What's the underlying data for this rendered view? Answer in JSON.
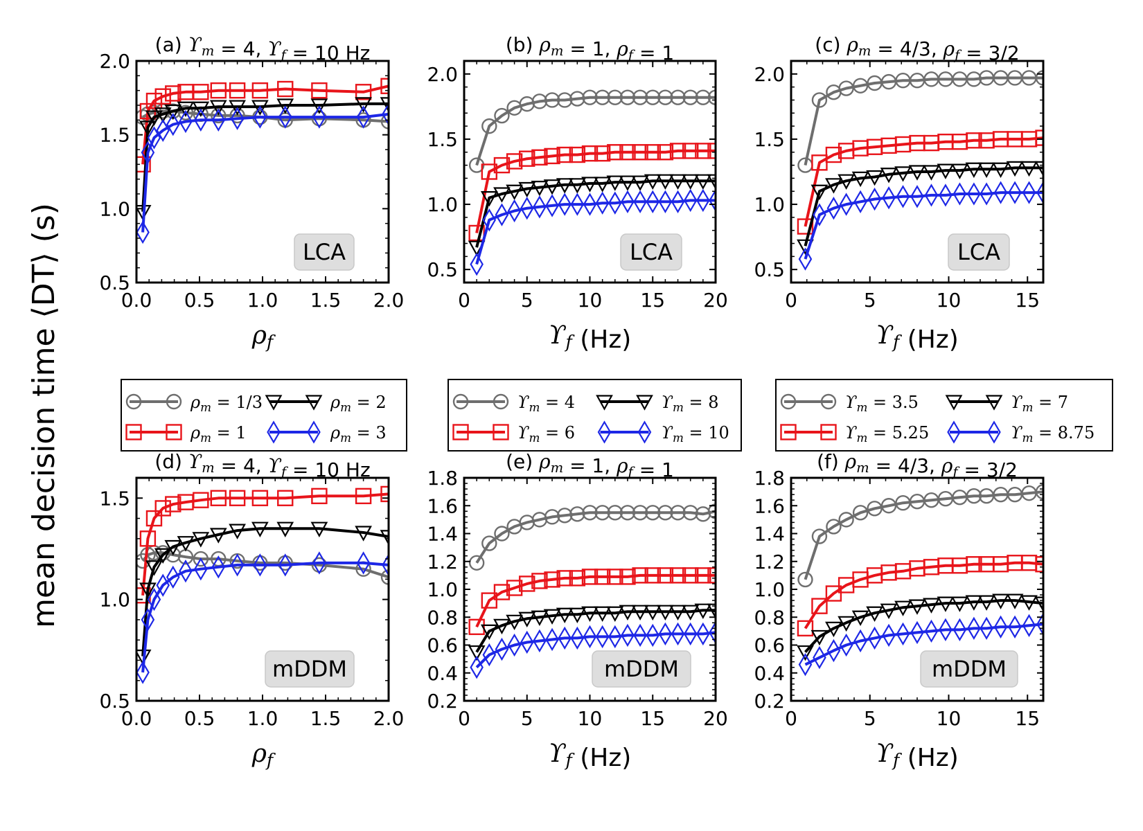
{
  "ylabel": "mean decision time ⟨DT⟩ (s)",
  "legends": [
    {
      "entries": [
        "ρm = 1/3",
        "ρm = 1",
        "ρm = 2",
        "ρm = 3"
      ]
    },
    {
      "entries": [
        "ϒm = 4",
        "ϒm = 6",
        "ϒm = 8",
        "ϒm = 10"
      ]
    },
    {
      "entries": [
        "ϒm = 3.5",
        "ϒm = 5.25",
        "ϒm = 7",
        "ϒm = 8.75"
      ]
    }
  ],
  "colors": {
    "gray": "#6e6e6e",
    "red": "#e8141a",
    "black": "#000000",
    "blue": "#1d27e6",
    "badge": "#dedede"
  },
  "chart_data": [
    {
      "type": "line",
      "panel": "a",
      "title": "(a) ϒm = 4, ϒf = 10 Hz",
      "xlabel": "ρf",
      "ylabel": "mean decision time ⟨DT⟩ (s)",
      "badge": "LCA",
      "xlim": [
        0,
        2.0
      ],
      "ylim": [
        0.5,
        2.0
      ],
      "xticks": [
        0.0,
        0.5,
        1.0,
        1.5,
        2.0
      ],
      "xticklabels": [
        "0.0",
        "0.5",
        "1.0",
        "1.5",
        "2.0"
      ],
      "yticks": [
        0.5,
        1.0,
        1.5,
        2.0
      ],
      "yticklabels": [
        "0.5",
        "1.0",
        "1.5",
        "2.0"
      ],
      "x": [
        0.05,
        0.09,
        0.14,
        0.21,
        0.29,
        0.39,
        0.51,
        0.65,
        0.8,
        0.98,
        1.18,
        1.45,
        1.8,
        2.0
      ],
      "series": [
        {
          "name": "ρm = 1/3",
          "values": [
            1.62,
            1.64,
            1.65,
            1.66,
            1.66,
            1.65,
            1.64,
            1.63,
            1.63,
            1.62,
            1.6,
            1.61,
            1.6,
            1.59
          ]
        },
        {
          "name": "ρm = 1",
          "values": [
            1.3,
            1.66,
            1.73,
            1.76,
            1.78,
            1.79,
            1.79,
            1.8,
            1.8,
            1.8,
            1.81,
            1.8,
            1.79,
            1.83
          ]
        },
        {
          "name": "ρm = 2",
          "values": [
            0.98,
            1.55,
            1.62,
            1.64,
            1.66,
            1.68,
            1.68,
            1.69,
            1.69,
            1.69,
            1.7,
            1.7,
            1.71,
            1.71
          ]
        },
        {
          "name": "ρm = 3",
          "values": [
            0.84,
            1.38,
            1.48,
            1.53,
            1.57,
            1.59,
            1.6,
            1.6,
            1.61,
            1.62,
            1.62,
            1.62,
            1.62,
            1.64
          ]
        }
      ]
    },
    {
      "type": "line",
      "panel": "b",
      "title": "(b) ρm = 1, ρf = 1",
      "xlabel": "ϒf (Hz)",
      "ylabel": "",
      "badge": "LCA",
      "xlim": [
        0,
        20
      ],
      "ylim": [
        0.4,
        2.1
      ],
      "xticks": [
        0,
        5,
        10,
        15,
        20
      ],
      "xticklabels": [
        "0",
        "5",
        "10",
        "15",
        "20"
      ],
      "yticks": [
        0.5,
        1.0,
        1.5,
        2.0
      ],
      "yticklabels": [
        "0.5",
        "1.0",
        "1.5",
        "2.0"
      ],
      "x": [
        1,
        2,
        3,
        4,
        5,
        6,
        7,
        8,
        9,
        10,
        11,
        12,
        13,
        14,
        15,
        16,
        17,
        18,
        19,
        20
      ],
      "series": [
        {
          "name": "ϒm = 4",
          "values": [
            1.3,
            1.6,
            1.68,
            1.74,
            1.77,
            1.79,
            1.8,
            1.8,
            1.81,
            1.82,
            1.82,
            1.82,
            1.82,
            1.82,
            1.82,
            1.82,
            1.82,
            1.82,
            1.82,
            1.82
          ]
        },
        {
          "name": "ϒm = 6",
          "values": [
            0.78,
            1.25,
            1.3,
            1.33,
            1.35,
            1.36,
            1.37,
            1.38,
            1.38,
            1.39,
            1.39,
            1.4,
            1.4,
            1.4,
            1.4,
            1.4,
            1.41,
            1.41,
            1.41,
            1.41
          ]
        },
        {
          "name": "ϒm = 8",
          "values": [
            0.67,
            1.05,
            1.08,
            1.1,
            1.12,
            1.13,
            1.14,
            1.15,
            1.15,
            1.16,
            1.16,
            1.17,
            1.17,
            1.17,
            1.18,
            1.18,
            1.18,
            1.18,
            1.18,
            1.18
          ]
        },
        {
          "name": "ϒm = 10",
          "values": [
            0.54,
            0.88,
            0.92,
            0.95,
            0.97,
            0.98,
            0.99,
            1.0,
            1.0,
            1.0,
            1.01,
            1.01,
            1.02,
            1.02,
            1.02,
            1.02,
            1.02,
            1.03,
            1.03,
            1.03
          ]
        }
      ]
    },
    {
      "type": "line",
      "panel": "c",
      "title": "(c) ρm = 4/3, ρf = 3/2",
      "xlabel": "ϒf (Hz)",
      "ylabel": "",
      "badge": "LCA",
      "xlim": [
        0,
        16
      ],
      "ylim": [
        0.4,
        2.1
      ],
      "xticks": [
        0,
        5,
        10,
        15
      ],
      "xticklabels": [
        "0",
        "5",
        "10",
        "15"
      ],
      "yticks": [
        0.5,
        1.0,
        1.5,
        2.0
      ],
      "yticklabels": [
        "0.5",
        "1.0",
        "1.5",
        "2.0"
      ],
      "x": [
        0.9,
        1.8,
        2.7,
        3.5,
        4.4,
        5.3,
        6.2,
        7.1,
        8.0,
        8.9,
        9.8,
        10.7,
        11.6,
        12.4,
        13.3,
        14.2,
        15.1,
        16.0
      ],
      "series": [
        {
          "name": "ϒm = 3.5",
          "values": [
            1.3,
            1.8,
            1.86,
            1.89,
            1.91,
            1.93,
            1.94,
            1.95,
            1.95,
            1.96,
            1.96,
            1.96,
            1.96,
            1.97,
            1.97,
            1.97,
            1.97,
            1.97
          ]
        },
        {
          "name": "ϒm = 5.25",
          "values": [
            0.83,
            1.32,
            1.38,
            1.41,
            1.43,
            1.44,
            1.45,
            1.46,
            1.47,
            1.47,
            1.48,
            1.48,
            1.49,
            1.49,
            1.5,
            1.5,
            1.5,
            1.51
          ]
        },
        {
          "name": "ϒm = 7",
          "values": [
            0.68,
            1.1,
            1.15,
            1.18,
            1.2,
            1.21,
            1.23,
            1.24,
            1.25,
            1.25,
            1.26,
            1.26,
            1.27,
            1.27,
            1.27,
            1.28,
            1.28,
            1.28
          ]
        },
        {
          "name": "ϒm = 8.75",
          "values": [
            0.58,
            0.92,
            0.97,
            1.0,
            1.02,
            1.04,
            1.05,
            1.06,
            1.06,
            1.07,
            1.07,
            1.08,
            1.08,
            1.08,
            1.09,
            1.09,
            1.09,
            1.09
          ]
        }
      ]
    },
    {
      "type": "line",
      "panel": "d",
      "title": "(d) ϒm = 4, ϒf = 10 Hz",
      "xlabel": "ρf",
      "ylabel": "mean decision time ⟨DT⟩ (s)",
      "badge": "mDDM",
      "xlim": [
        0,
        2.0
      ],
      "ylim": [
        0.5,
        1.6
      ],
      "xticks": [
        0.0,
        0.5,
        1.0,
        1.5,
        2.0
      ],
      "xticklabels": [
        "0.0",
        "0.5",
        "1.0",
        "1.5",
        "2.0"
      ],
      "yticks": [
        0.5,
        1.0,
        1.5
      ],
      "yticklabels": [
        "0.5",
        "1.0",
        "1.5"
      ],
      "x": [
        0.05,
        0.09,
        0.14,
        0.21,
        0.29,
        0.39,
        0.51,
        0.65,
        0.8,
        0.98,
        1.18,
        1.45,
        1.8,
        2.0
      ],
      "series": [
        {
          "name": "ρm = 1/3",
          "values": [
            1.19,
            1.22,
            1.23,
            1.23,
            1.22,
            1.21,
            1.2,
            1.2,
            1.19,
            1.18,
            1.18,
            1.17,
            1.15,
            1.11
          ]
        },
        {
          "name": "ρm = 1",
          "values": [
            1.02,
            1.3,
            1.4,
            1.45,
            1.47,
            1.48,
            1.49,
            1.5,
            1.5,
            1.5,
            1.5,
            1.51,
            1.51,
            1.52
          ]
        },
        {
          "name": "ρm = 2",
          "values": [
            0.72,
            1.05,
            1.16,
            1.22,
            1.26,
            1.28,
            1.3,
            1.32,
            1.34,
            1.35,
            1.35,
            1.35,
            1.33,
            1.31
          ]
        },
        {
          "name": "ρm = 3",
          "values": [
            0.64,
            0.9,
            1.0,
            1.07,
            1.11,
            1.14,
            1.15,
            1.16,
            1.17,
            1.17,
            1.17,
            1.18,
            1.18,
            1.17
          ]
        }
      ]
    },
    {
      "type": "line",
      "panel": "e",
      "title": "(e) ρm = 1, ρf = 1",
      "xlabel": "ϒf (Hz)",
      "ylabel": "",
      "badge": "mDDM",
      "xlim": [
        0,
        20
      ],
      "ylim": [
        0.2,
        1.8
      ],
      "xticks": [
        0,
        5,
        10,
        15,
        20
      ],
      "xticklabels": [
        "0",
        "5",
        "10",
        "15",
        "20"
      ],
      "yticks": [
        0.2,
        0.4,
        0.6,
        0.8,
        1.0,
        1.2,
        1.4,
        1.6,
        1.8
      ],
      "yticklabels": [
        "0.2",
        "0.4",
        "0.6",
        "0.8",
        "1.0",
        "1.2",
        "1.4",
        "1.6",
        "1.8"
      ],
      "x": [
        1,
        2,
        3,
        4,
        5,
        6,
        7,
        8,
        9,
        10,
        11,
        12,
        13,
        14,
        15,
        16,
        17,
        18,
        19,
        20
      ],
      "series": [
        {
          "name": "ϒm = 4",
          "values": [
            1.19,
            1.33,
            1.4,
            1.45,
            1.48,
            1.5,
            1.52,
            1.53,
            1.54,
            1.55,
            1.55,
            1.55,
            1.55,
            1.55,
            1.55,
            1.55,
            1.55,
            1.55,
            1.54,
            1.56
          ]
        },
        {
          "name": "ϒm = 6",
          "values": [
            0.73,
            0.92,
            0.98,
            1.01,
            1.04,
            1.06,
            1.07,
            1.08,
            1.08,
            1.09,
            1.09,
            1.09,
            1.09,
            1.1,
            1.1,
            1.1,
            1.1,
            1.1,
            1.1,
            1.1
          ]
        },
        {
          "name": "ϒm = 8",
          "values": [
            0.55,
            0.7,
            0.74,
            0.77,
            0.79,
            0.8,
            0.81,
            0.82,
            0.82,
            0.83,
            0.83,
            0.83,
            0.84,
            0.84,
            0.84,
            0.84,
            0.84,
            0.84,
            0.85,
            0.85
          ]
        },
        {
          "name": "ϒm = 10",
          "values": [
            0.44,
            0.53,
            0.57,
            0.6,
            0.62,
            0.63,
            0.64,
            0.65,
            0.65,
            0.66,
            0.66,
            0.66,
            0.67,
            0.67,
            0.67,
            0.68,
            0.68,
            0.68,
            0.68,
            0.69
          ]
        }
      ]
    },
    {
      "type": "line",
      "panel": "f",
      "title": "(f) ρm = 4/3, ρf = 3/2",
      "xlabel": "ϒf (Hz)",
      "ylabel": "",
      "badge": "mDDM",
      "xlim": [
        0,
        16
      ],
      "ylim": [
        0.2,
        1.8
      ],
      "xticks": [
        0,
        5,
        10,
        15
      ],
      "xticklabels": [
        "0",
        "5",
        "10",
        "15"
      ],
      "yticks": [
        0.2,
        0.4,
        0.6,
        0.8,
        1.0,
        1.2,
        1.4,
        1.6,
        1.8
      ],
      "yticklabels": [
        "0.2",
        "0.4",
        "0.6",
        "0.8",
        "1.0",
        "1.2",
        "1.4",
        "1.6",
        "1.8"
      ],
      "x": [
        0.9,
        1.8,
        2.7,
        3.5,
        4.4,
        5.3,
        6.2,
        7.1,
        8.0,
        8.9,
        9.8,
        10.7,
        11.6,
        12.4,
        13.3,
        14.2,
        15.1,
        16.0
      ],
      "series": [
        {
          "name": "ϒm = 3.5",
          "values": [
            1.07,
            1.38,
            1.45,
            1.5,
            1.55,
            1.58,
            1.6,
            1.62,
            1.63,
            1.64,
            1.65,
            1.66,
            1.67,
            1.67,
            1.68,
            1.68,
            1.69,
            1.7
          ]
        },
        {
          "name": "ϒm = 5.25",
          "values": [
            0.72,
            0.88,
            0.97,
            1.03,
            1.07,
            1.1,
            1.12,
            1.13,
            1.15,
            1.16,
            1.17,
            1.17,
            1.18,
            1.18,
            1.18,
            1.19,
            1.19,
            1.18
          ]
        },
        {
          "name": "ϒm = 7",
          "values": [
            0.55,
            0.66,
            0.72,
            0.76,
            0.8,
            0.83,
            0.85,
            0.87,
            0.88,
            0.89,
            0.9,
            0.9,
            0.91,
            0.91,
            0.92,
            0.92,
            0.91,
            0.9
          ]
        },
        {
          "name": "ϒm = 8.75",
          "values": [
            0.46,
            0.51,
            0.56,
            0.6,
            0.63,
            0.65,
            0.67,
            0.68,
            0.69,
            0.7,
            0.71,
            0.71,
            0.72,
            0.72,
            0.73,
            0.73,
            0.74,
            0.75
          ]
        }
      ]
    }
  ]
}
